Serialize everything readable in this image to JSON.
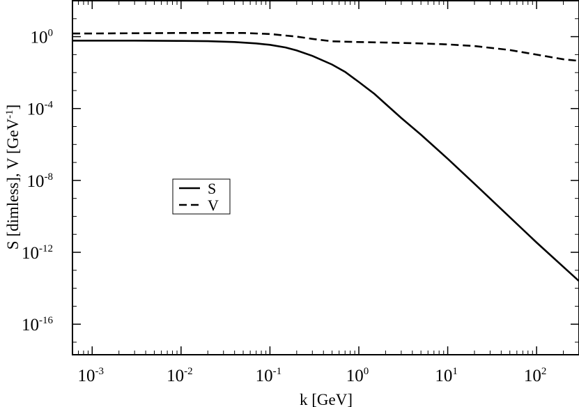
{
  "chart_data": {
    "type": "line",
    "title": "",
    "xlabel": "k [GeV]",
    "ylabel": {
      "text": "S [dimless], V [GeV",
      "sup": "-1",
      "close": "]"
    },
    "x_scale": "log",
    "y_scale": "log",
    "xlim": [
      0.0006,
      300
    ],
    "ylim": [
      2e-18,
      100
    ],
    "grid": false,
    "legend_position": "center-left",
    "x_ticks": [
      {
        "value": 0.001,
        "base": "10",
        "exp": "-3"
      },
      {
        "value": 0.01,
        "base": "10",
        "exp": "-2"
      },
      {
        "value": 0.1,
        "base": "10",
        "exp": "-1"
      },
      {
        "value": 1,
        "base": "10",
        "exp": "0"
      },
      {
        "value": 10,
        "base": "10",
        "exp": "1"
      },
      {
        "value": 100,
        "base": "10",
        "exp": "2"
      }
    ],
    "y_ticks": [
      {
        "value": 1,
        "base": "10",
        "exp": "0"
      },
      {
        "value": 0.0001,
        "base": "10",
        "exp": "-4"
      },
      {
        "value": 1e-08,
        "base": "10",
        "exp": "-8"
      },
      {
        "value": 1e-12,
        "base": "10",
        "exp": "-12"
      },
      {
        "value": 1e-16,
        "base": "10",
        "exp": "-16"
      }
    ],
    "series": [
      {
        "name": "S",
        "style": "solid",
        "color": "#000000",
        "x": [
          0.0006,
          0.001,
          0.003,
          0.01,
          0.02,
          0.04,
          0.07,
          0.1,
          0.15,
          0.2,
          0.3,
          0.5,
          0.7,
          1,
          1.5,
          2,
          3,
          5,
          10,
          20,
          50,
          100,
          300
        ],
        "y": [
          0.6,
          0.6,
          0.6,
          0.58,
          0.56,
          0.5,
          0.42,
          0.35,
          0.25,
          0.17,
          0.085,
          0.028,
          0.011,
          0.003,
          0.00065,
          0.00018,
          3e-05,
          3.5e-06,
          1.6e-07,
          6.5e-09,
          9e-11,
          3.5e-12,
          2.5e-14
        ]
      },
      {
        "name": "V",
        "style": "dashed",
        "color": "#000000",
        "x": [
          0.0006,
          0.001,
          0.01,
          0.05,
          0.1,
          0.2,
          0.3,
          0.5,
          1,
          2,
          5,
          10,
          20,
          50,
          100,
          200,
          300
        ],
        "y": [
          1.5,
          1.5,
          1.6,
          1.6,
          1.4,
          1.0,
          0.75,
          0.55,
          0.5,
          0.47,
          0.42,
          0.37,
          0.3,
          0.18,
          0.1,
          0.055,
          0.045
        ]
      }
    ]
  }
}
